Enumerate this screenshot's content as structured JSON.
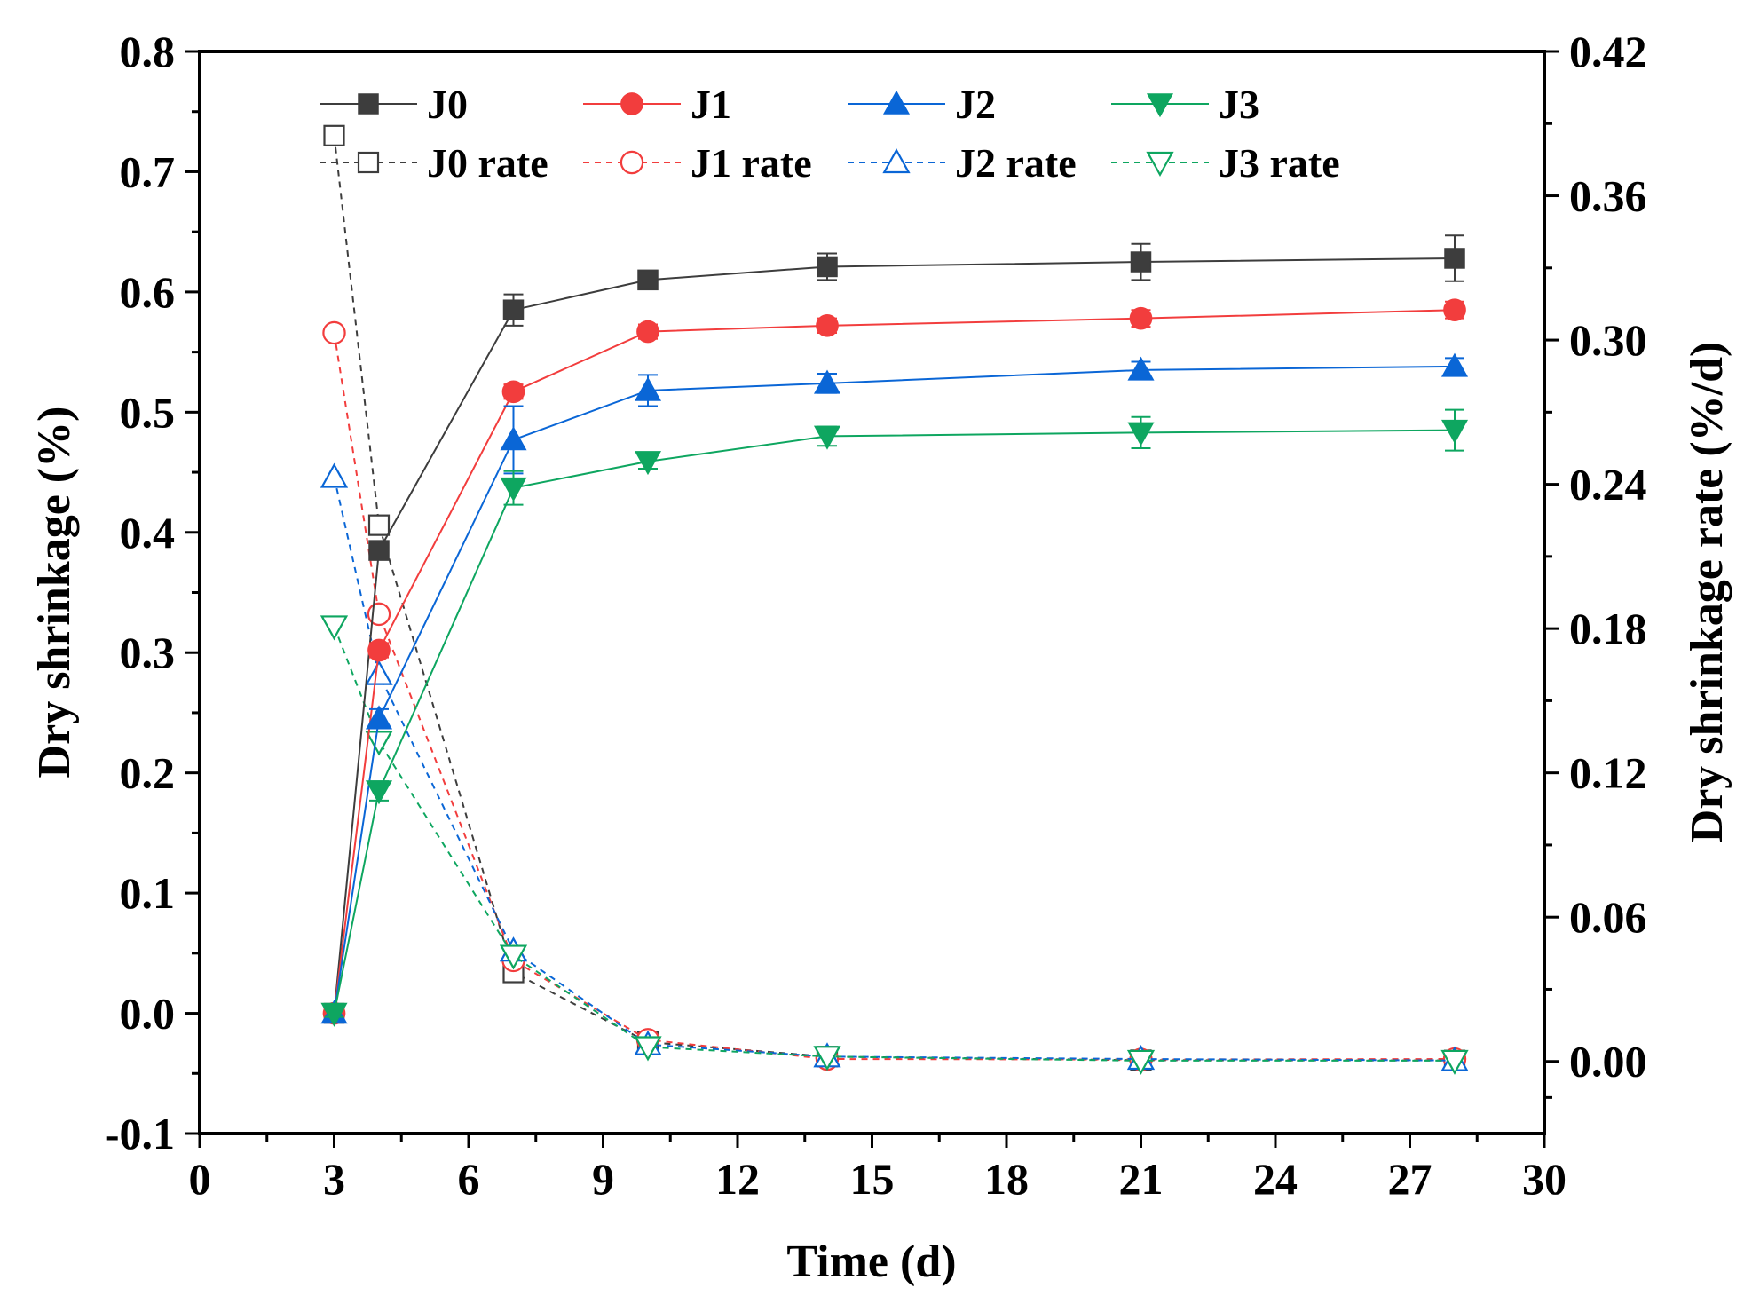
{
  "chart_data": {
    "type": "line",
    "title": "",
    "xlabel": "Time (d)",
    "ylabel": "Dry shrinkage (%)",
    "y2label": "Dry shrinkage rate (%/d)",
    "xlim": [
      0,
      30
    ],
    "ylim": [
      -0.1,
      0.8
    ],
    "y2lim": [
      -0.03,
      0.42
    ],
    "xticks": [
      0,
      3,
      6,
      9,
      12,
      15,
      18,
      21,
      24,
      27,
      30
    ],
    "xtick_labels": [
      "0",
      "3",
      "6",
      "9",
      "12",
      "15",
      "18",
      "21",
      "24",
      "27",
      "30"
    ],
    "yticks": [
      -0.1,
      0.0,
      0.1,
      0.2,
      0.3,
      0.4,
      0.5,
      0.6,
      0.7,
      0.8
    ],
    "ytick_labels": [
      "-0.1",
      "0.0",
      "0.1",
      "0.2",
      "0.3",
      "0.4",
      "0.5",
      "0.6",
      "0.7",
      "0.8"
    ],
    "y2ticks": [
      0.0,
      0.06,
      0.12,
      0.18,
      0.24,
      0.3,
      0.36,
      0.42
    ],
    "y2tick_labels": [
      "0.00",
      "0.06",
      "0.12",
      "0.18",
      "0.24",
      "0.30",
      "0.36",
      "0.42"
    ],
    "x": [
      3,
      4,
      7,
      10,
      14,
      21,
      28
    ],
    "legend_position": "top-left",
    "grid": false,
    "series": [
      {
        "name": "J0",
        "axis": "left",
        "color": "#3d3d3d",
        "marker": "square",
        "filled": true,
        "dashed": false,
        "values": [
          0.0,
          0.385,
          0.585,
          0.61,
          0.621,
          0.625,
          0.628
        ],
        "errors": [
          0.003,
          0.006,
          0.013,
          0.007,
          0.011,
          0.015,
          0.019
        ]
      },
      {
        "name": "J1",
        "axis": "left",
        "color": "#f23d3d",
        "marker": "circle",
        "filled": true,
        "dashed": false,
        "values": [
          0.0,
          0.302,
          0.517,
          0.567,
          0.572,
          0.578,
          0.585
        ],
        "errors": [
          0.003,
          0.006,
          0.006,
          0.006,
          0.006,
          0.007,
          0.007
        ]
      },
      {
        "name": "J2",
        "axis": "left",
        "color": "#0a66d6",
        "marker": "triangle-up",
        "filled": true,
        "dashed": false,
        "values": [
          0.0,
          0.245,
          0.477,
          0.518,
          0.524,
          0.535,
          0.538
        ],
        "errors": [
          0.003,
          0.008,
          0.028,
          0.013,
          0.008,
          0.007,
          0.007
        ]
      },
      {
        "name": "J3",
        "axis": "left",
        "color": "#0ea660",
        "marker": "triangle-down",
        "filled": true,
        "dashed": false,
        "values": [
          0.0,
          0.185,
          0.437,
          0.459,
          0.48,
          0.483,
          0.485
        ],
        "errors": [
          0.003,
          0.008,
          0.014,
          0.006,
          0.008,
          0.013,
          0.017
        ]
      },
      {
        "name": "J0 rate",
        "axis": "right",
        "color": "#3d3d3d",
        "marker": "square",
        "filled": false,
        "dashed": true,
        "values": [
          0.385,
          0.223,
          0.037,
          0.008,
          0.002,
          0.0005,
          0.0004
        ]
      },
      {
        "name": "J1 rate",
        "axis": "right",
        "color": "#f23d3d",
        "marker": "circle",
        "filled": false,
        "dashed": true,
        "values": [
          0.303,
          0.186,
          0.042,
          0.009,
          0.001,
          0.0008,
          0.001
        ]
      },
      {
        "name": "J2 rate",
        "axis": "right",
        "color": "#0a66d6",
        "marker": "triangle-up",
        "filled": false,
        "dashed": true,
        "values": [
          0.243,
          0.161,
          0.046,
          0.007,
          0.002,
          0.001,
          0.0004
        ]
      },
      {
        "name": "J3 rate",
        "axis": "right",
        "color": "#0ea660",
        "marker": "triangle-down",
        "filled": false,
        "dashed": true,
        "values": [
          0.181,
          0.133,
          0.044,
          0.006,
          0.002,
          0.0003,
          0.0003
        ]
      }
    ]
  }
}
